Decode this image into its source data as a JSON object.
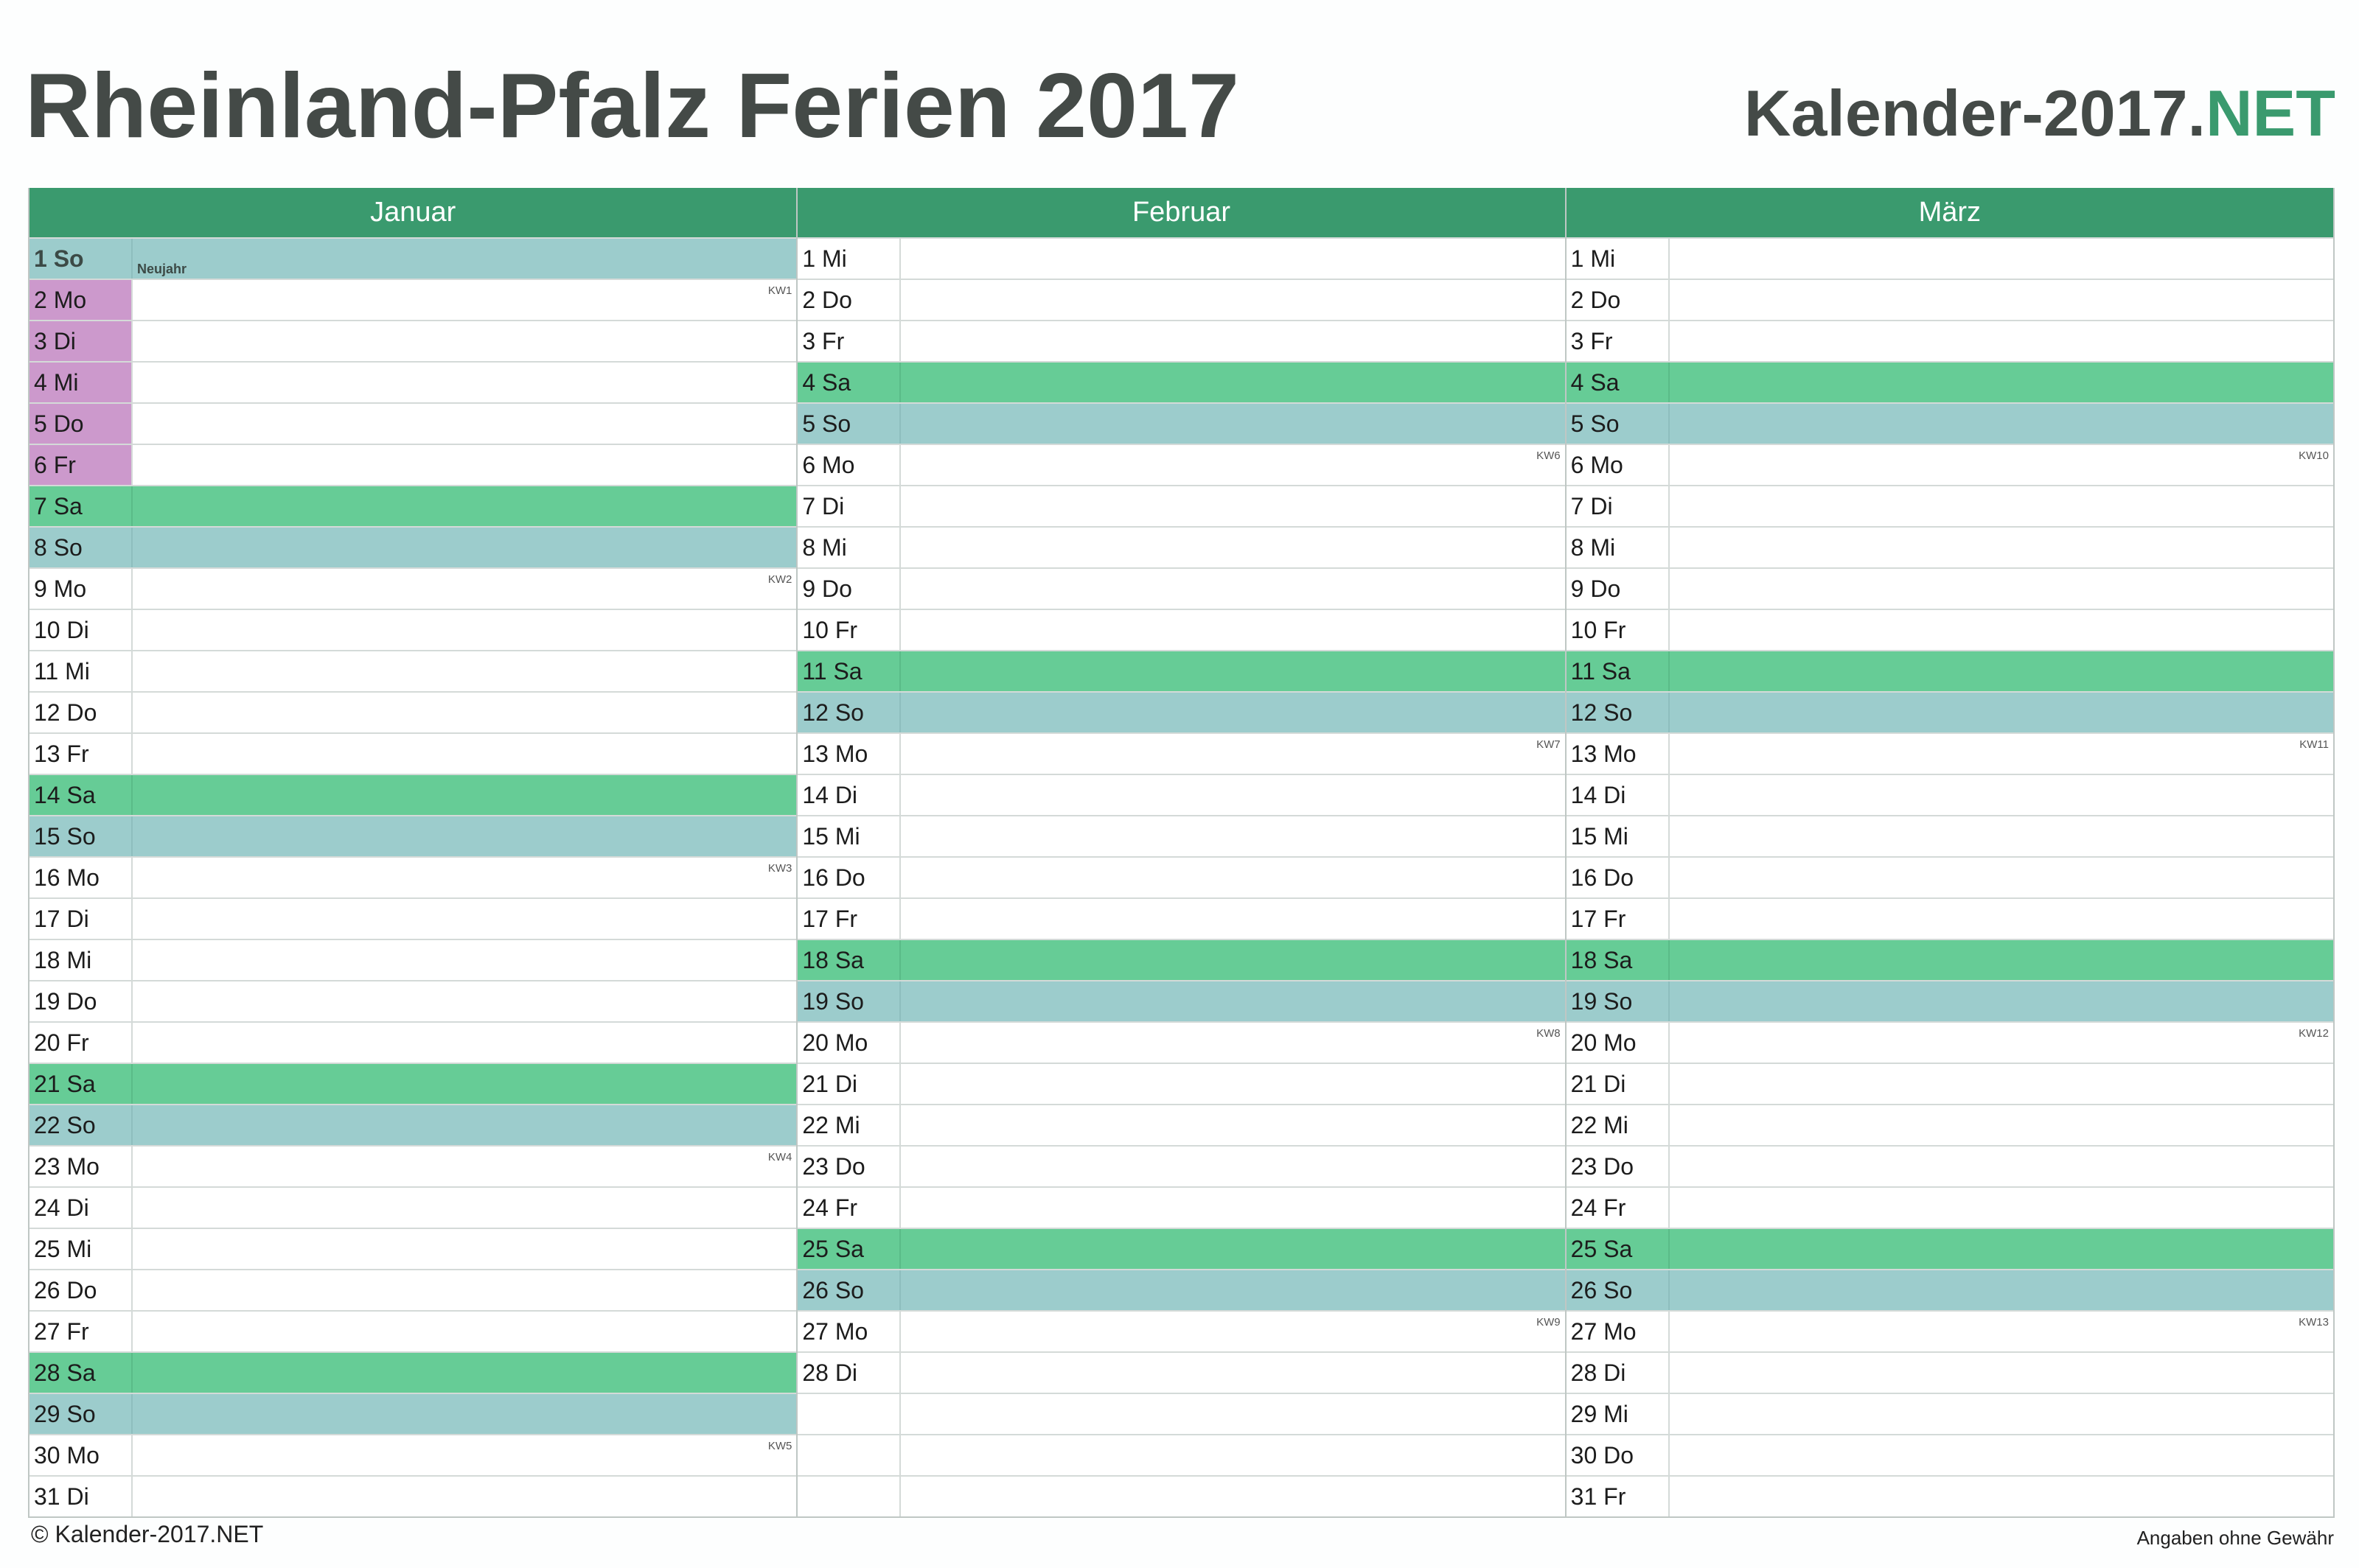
{
  "header": {
    "title": "Rheinland-Pfalz Ferien 2017",
    "brand_main": "Kalender-2017.",
    "brand_accent": "NET"
  },
  "colors": {
    "header_green": "#3a9a6e",
    "saturday": "#66cc96",
    "sunday": "#9ccccc",
    "school_holiday": "#cc99cc"
  },
  "months": [
    {
      "name": "Januar",
      "rows": [
        {
          "label": "1 So",
          "type": "so",
          "holiday": "Neujahr"
        },
        {
          "label": "2 Mo",
          "kw": "KW1",
          "ferien": true
        },
        {
          "label": "3 Di",
          "ferien": true
        },
        {
          "label": "4 Mi",
          "ferien": true
        },
        {
          "label": "5 Do",
          "ferien": true
        },
        {
          "label": "6 Fr",
          "ferien": true
        },
        {
          "label": "7 Sa",
          "type": "sa"
        },
        {
          "label": "8 So",
          "type": "so"
        },
        {
          "label": "9 Mo",
          "kw": "KW2"
        },
        {
          "label": "10 Di"
        },
        {
          "label": "11 Mi"
        },
        {
          "label": "12 Do"
        },
        {
          "label": "13 Fr"
        },
        {
          "label": "14 Sa",
          "type": "sa"
        },
        {
          "label": "15 So",
          "type": "so"
        },
        {
          "label": "16 Mo",
          "kw": "KW3"
        },
        {
          "label": "17 Di"
        },
        {
          "label": "18 Mi"
        },
        {
          "label": "19 Do"
        },
        {
          "label": "20 Fr"
        },
        {
          "label": "21 Sa",
          "type": "sa"
        },
        {
          "label": "22 So",
          "type": "so"
        },
        {
          "label": "23 Mo",
          "kw": "KW4"
        },
        {
          "label": "24 Di"
        },
        {
          "label": "25 Mi"
        },
        {
          "label": "26 Do"
        },
        {
          "label": "27 Fr"
        },
        {
          "label": "28 Sa",
          "type": "sa"
        },
        {
          "label": "29 So",
          "type": "so"
        },
        {
          "label": "30 Mo",
          "kw": "KW5"
        },
        {
          "label": "31 Di"
        }
      ]
    },
    {
      "name": "Februar",
      "rows": [
        {
          "label": "1 Mi"
        },
        {
          "label": "2 Do"
        },
        {
          "label": "3 Fr"
        },
        {
          "label": "4 Sa",
          "type": "sa"
        },
        {
          "label": "5 So",
          "type": "so"
        },
        {
          "label": "6 Mo",
          "kw": "KW6"
        },
        {
          "label": "7 Di"
        },
        {
          "label": "8 Mi"
        },
        {
          "label": "9 Do"
        },
        {
          "label": "10 Fr"
        },
        {
          "label": "11 Sa",
          "type": "sa"
        },
        {
          "label": "12 So",
          "type": "so"
        },
        {
          "label": "13 Mo",
          "kw": "KW7"
        },
        {
          "label": "14 Di"
        },
        {
          "label": "15 Mi"
        },
        {
          "label": "16 Do"
        },
        {
          "label": "17 Fr"
        },
        {
          "label": "18 Sa",
          "type": "sa"
        },
        {
          "label": "19 So",
          "type": "so"
        },
        {
          "label": "20 Mo",
          "kw": "KW8"
        },
        {
          "label": "21 Di"
        },
        {
          "label": "22 Mi"
        },
        {
          "label": "23 Do"
        },
        {
          "label": "24 Fr"
        },
        {
          "label": "25 Sa",
          "type": "sa"
        },
        {
          "label": "26 So",
          "type": "so"
        },
        {
          "label": "27 Mo",
          "kw": "KW9"
        },
        {
          "label": "28 Di"
        },
        {
          "label": ""
        },
        {
          "label": ""
        },
        {
          "label": ""
        }
      ]
    },
    {
      "name": "März",
      "rows": [
        {
          "label": "1 Mi"
        },
        {
          "label": "2 Do"
        },
        {
          "label": "3 Fr"
        },
        {
          "label": "4 Sa",
          "type": "sa"
        },
        {
          "label": "5 So",
          "type": "so"
        },
        {
          "label": "6 Mo",
          "kw": "KW10"
        },
        {
          "label": "7 Di"
        },
        {
          "label": "8 Mi"
        },
        {
          "label": "9 Do"
        },
        {
          "label": "10 Fr"
        },
        {
          "label": "11 Sa",
          "type": "sa"
        },
        {
          "label": "12 So",
          "type": "so"
        },
        {
          "label": "13 Mo",
          "kw": "KW11"
        },
        {
          "label": "14 Di"
        },
        {
          "label": "15 Mi"
        },
        {
          "label": "16 Do"
        },
        {
          "label": "17 Fr"
        },
        {
          "label": "18 Sa",
          "type": "sa"
        },
        {
          "label": "19 So",
          "type": "so"
        },
        {
          "label": "20 Mo",
          "kw": "KW12"
        },
        {
          "label": "21 Di"
        },
        {
          "label": "22 Mi"
        },
        {
          "label": "23 Do"
        },
        {
          "label": "24 Fr"
        },
        {
          "label": "25 Sa",
          "type": "sa"
        },
        {
          "label": "26 So",
          "type": "so"
        },
        {
          "label": "27 Mo",
          "kw": "KW13"
        },
        {
          "label": "28 Di"
        },
        {
          "label": "29 Mi"
        },
        {
          "label": "30 Do"
        },
        {
          "label": "31 Fr"
        }
      ]
    }
  ],
  "footer": {
    "copyright": "© Kalender-2017.NET",
    "disclaimer": "Angaben ohne Gewähr"
  }
}
